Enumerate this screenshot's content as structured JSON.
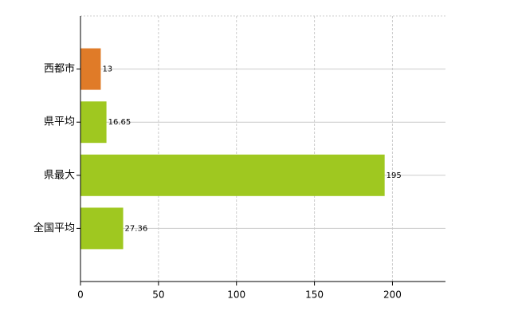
{
  "chart_data": {
    "type": "bar",
    "orientation": "horizontal",
    "categories": [
      "西都市",
      "県平均",
      "県最大",
      "全国平均"
    ],
    "values": [
      13,
      16.65,
      195,
      27.36
    ],
    "colors": [
      "#e07b28",
      "#9fc820",
      "#9fc820",
      "#9fc820"
    ],
    "xlim": [
      0,
      234
    ],
    "xticks": [
      0,
      50,
      100,
      150,
      200
    ],
    "grid": true
  }
}
